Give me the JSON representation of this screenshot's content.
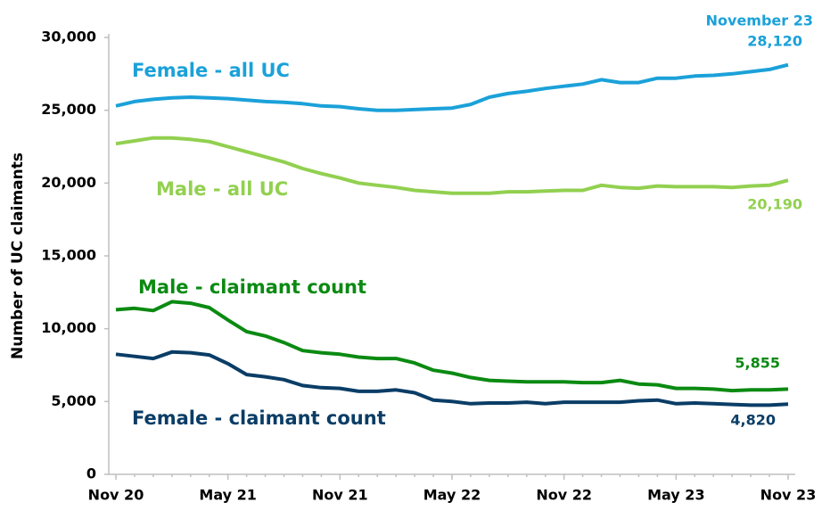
{
  "chart_data": {
    "type": "line",
    "y_label": "Number of UC claimants",
    "annotation": "November 23",
    "categories": [
      "Nov 20",
      null,
      null,
      null,
      null,
      null,
      "May 21",
      null,
      null,
      null,
      null,
      null,
      "Nov 21",
      null,
      null,
      null,
      null,
      null,
      "May 22",
      null,
      null,
      null,
      null,
      null,
      "Nov 22",
      null,
      null,
      null,
      null,
      null,
      "May 23",
      null,
      null,
      null,
      null,
      null,
      "Nov 23"
    ],
    "ylim": [
      0,
      30000
    ],
    "yticks": [
      0,
      {
        "value": 5000,
        "label": "5,000"
      },
      {
        "value": 10000,
        "label": "10,000"
      },
      {
        "value": 15000,
        "label": "15,000"
      },
      {
        "value": 20000,
        "label": "20,000"
      },
      {
        "value": 25000,
        "label": "25,000"
      },
      {
        "value": 30000,
        "label": "30,000"
      }
    ],
    "series": [
      {
        "name": "Female - all UC",
        "color": "#1ba1d9",
        "values": [
          25300,
          25600,
          25750,
          25850,
          25900,
          25850,
          25800,
          25700,
          25600,
          25550,
          25450,
          25300,
          25250,
          25100,
          25000,
          25000,
          25050,
          25100,
          25150,
          25400,
          25900,
          26150,
          26300,
          26500,
          26650,
          26800,
          27100,
          26900,
          26900,
          27200,
          27200,
          27350,
          27400,
          27500,
          27650,
          27800,
          28120
        ],
        "value_labels": [
          null,
          null,
          null,
          null,
          null,
          null,
          null,
          null,
          null,
          null,
          null,
          null,
          null,
          null,
          null,
          null,
          null,
          null,
          null,
          null,
          null,
          null,
          null,
          null,
          null,
          null,
          null,
          null,
          null,
          null,
          null,
          null,
          null,
          null,
          null,
          null,
          "28,120"
        ]
      },
      {
        "name": "Male - all UC",
        "color": "#92d050",
        "values": [
          22700,
          22900,
          23100,
          23100,
          23000,
          22850,
          22500,
          22150,
          21800,
          21450,
          21000,
          20650,
          20350,
          20000,
          19850,
          19700,
          19500,
          19400,
          19300,
          19300,
          19300,
          19400,
          19400,
          19450,
          19500,
          19500,
          19850,
          19700,
          19650,
          19800,
          19750,
          19750,
          19750,
          19700,
          19800,
          19850,
          20190
        ],
        "value_labels": [
          null,
          null,
          null,
          null,
          null,
          null,
          null,
          null,
          null,
          null,
          null,
          null,
          null,
          null,
          null,
          null,
          null,
          null,
          null,
          null,
          null,
          null,
          null,
          null,
          null,
          null,
          null,
          null,
          null,
          null,
          null,
          null,
          null,
          null,
          null,
          null,
          "20,190"
        ]
      },
      {
        "name": "Male - claimant count",
        "color": "#0b8a12",
        "values": [
          11300,
          11400,
          11250,
          11850,
          11750,
          11450,
          10600,
          9800,
          9500,
          9050,
          8500,
          8350,
          8250,
          8050,
          7950,
          7950,
          7650,
          7150,
          6950,
          6650,
          6450,
          6400,
          6350,
          6350,
          6350,
          6300,
          6300,
          6450,
          6200,
          6150,
          5900,
          5900,
          5850,
          5750,
          5800,
          5800,
          5855
        ],
        "value_labels": [
          null,
          null,
          null,
          null,
          null,
          null,
          null,
          null,
          null,
          null,
          null,
          null,
          null,
          null,
          null,
          null,
          null,
          null,
          null,
          null,
          null,
          null,
          null,
          null,
          null,
          null,
          null,
          null,
          null,
          null,
          null,
          null,
          null,
          null,
          null,
          null,
          "5,855"
        ]
      },
      {
        "name": "Female - claimant count",
        "color": "#0a3d66",
        "values": [
          8250,
          8100,
          7950,
          8400,
          8350,
          8200,
          7600,
          6850,
          6700,
          6500,
          6100,
          5950,
          5900,
          5700,
          5700,
          5800,
          5600,
          5100,
          5000,
          4850,
          4900,
          4900,
          4950,
          4850,
          4950,
          4950,
          4950,
          4950,
          5050,
          5100,
          4850,
          4900,
          4850,
          4800,
          4750,
          4750,
          4820
        ],
        "value_labels": [
          null,
          null,
          null,
          null,
          null,
          null,
          null,
          null,
          null,
          null,
          null,
          null,
          null,
          null,
          null,
          null,
          null,
          null,
          null,
          null,
          null,
          null,
          null,
          null,
          null,
          null,
          null,
          null,
          null,
          null,
          null,
          null,
          null,
          null,
          null,
          null,
          "4,820"
        ]
      }
    ]
  }
}
